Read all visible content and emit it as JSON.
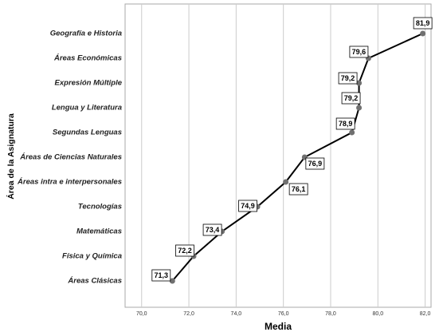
{
  "chart_data": {
    "type": "line",
    "orientation": "horizontal",
    "xlabel": "Media",
    "ylabel": "Área de la Asignatura",
    "categories": [
      "Geografía e Historia",
      "Áreas Económicas",
      "Expresión Múltiple",
      "Lengua y Literatura",
      "Segundas Lenguas",
      "Áreas de Ciencias Naturales",
      "Áreas intra e interpersonales",
      "Tecnologías",
      "Matemáticas",
      "Física y Química",
      "Áreas Clásicas"
    ],
    "values": [
      81.9,
      79.6,
      79.2,
      79.2,
      78.9,
      76.9,
      76.1,
      74.9,
      73.4,
      72.2,
      71.3
    ],
    "value_labels": [
      "81,9",
      "79,6",
      "79,2",
      "79,2",
      "78,9",
      "76,9",
      "76,1",
      "74,9",
      "73,4",
      "72,2",
      "71,3"
    ],
    "color": "#000000",
    "marker_color": "#707070",
    "xlim": [
      69.3,
      82.25
    ],
    "xticks": [
      {
        "value": 70,
        "label": "70,0"
      },
      {
        "value": 72,
        "label": "72,0"
      },
      {
        "value": 74,
        "label": "74,0"
      },
      {
        "value": 76,
        "label": "76,0"
      },
      {
        "value": 78,
        "label": "78,0"
      },
      {
        "value": 80,
        "label": "80,0"
      },
      {
        "value": 82,
        "label": "82,0"
      }
    ],
    "grid": true
  }
}
